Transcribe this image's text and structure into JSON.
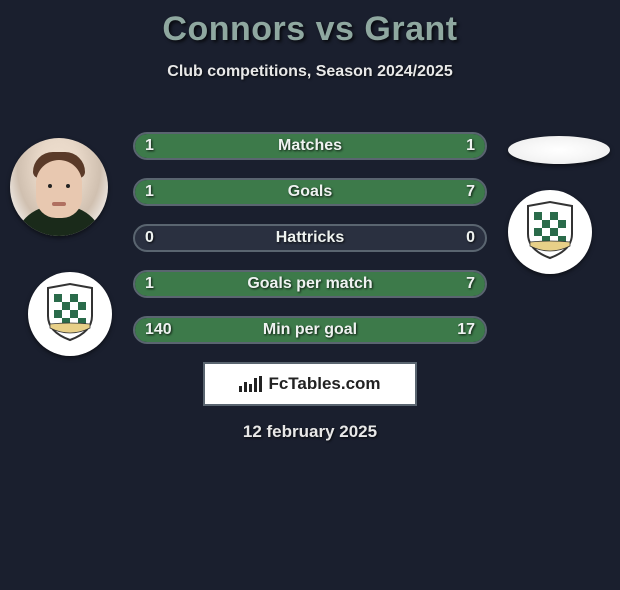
{
  "title": "Connors vs Grant",
  "subtitle": "Club competitions, Season 2024/2025",
  "date": "12 february 2025",
  "colors": {
    "background": "#1a1f2e",
    "title_color": "#8fa8a0",
    "text_color": "#e8e8e8",
    "bar_fill": "#3d7a4a",
    "bar_border": "#5a6570",
    "bar_bg": "#2a3040",
    "badge_bg": "#ffffff",
    "shield_check_a": "#2a6b4a",
    "shield_check_b": "#ffffff",
    "shield_border": "#333333"
  },
  "logo": {
    "text": "FcTables.com"
  },
  "stats": [
    {
      "label": "Matches",
      "left_value": "1",
      "right_value": "1",
      "left_pct": 50,
      "right_pct": 50
    },
    {
      "label": "Goals",
      "left_value": "1",
      "right_value": "7",
      "left_pct": 12,
      "right_pct": 88
    },
    {
      "label": "Hattricks",
      "left_value": "0",
      "right_value": "0",
      "left_pct": 0,
      "right_pct": 0
    },
    {
      "label": "Goals per match",
      "left_value": "1",
      "right_value": "7",
      "left_pct": 12,
      "right_pct": 88
    },
    {
      "label": "Min per goal",
      "left_value": "140",
      "right_value": "17",
      "left_pct": 11,
      "right_pct": 89
    }
  ],
  "left_player": {
    "name": "Connors",
    "badge_name": "club-badge"
  },
  "right_player": {
    "name": "Grant",
    "badge_name": "club-badge"
  }
}
